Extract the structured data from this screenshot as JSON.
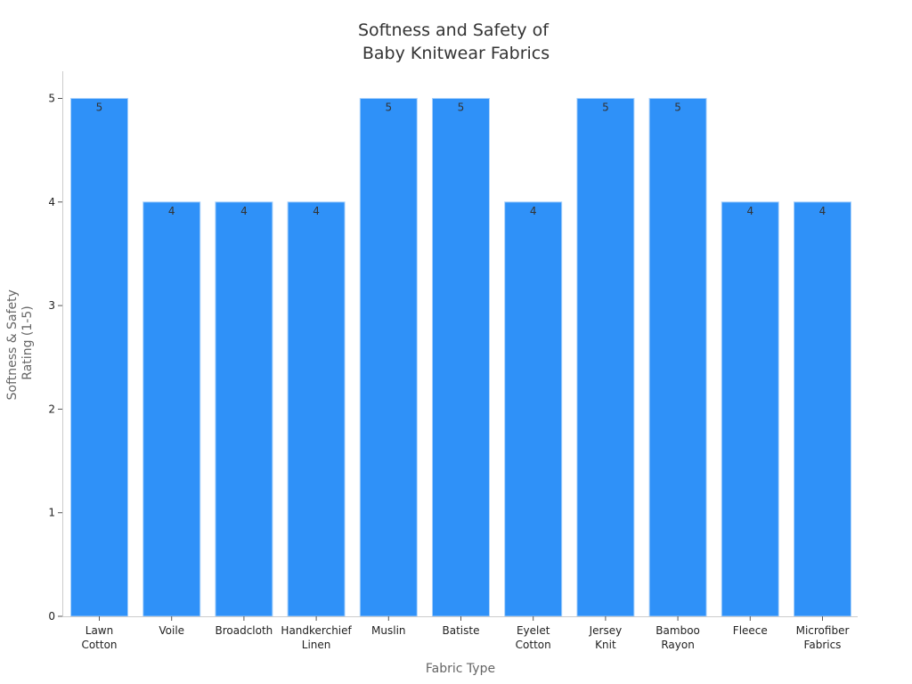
{
  "chart_data": {
    "type": "bar",
    "title": [
      "Softness and Safety of",
      "Baby Knitwear Fabrics"
    ],
    "xlabel": "Fabric Type",
    "ylabel": [
      "Softness & Safety",
      "Rating (1-5)"
    ],
    "categories": [
      [
        "Lawn",
        "Cotton"
      ],
      [
        "Voile"
      ],
      [
        "Broadcloth"
      ],
      [
        "Handkerchief",
        "Linen"
      ],
      [
        "Muslin"
      ],
      [
        "Batiste"
      ],
      [
        "Eyelet",
        "Cotton"
      ],
      [
        "Jersey",
        "Knit"
      ],
      [
        "Bamboo",
        "Rayon"
      ],
      [
        "Fleece"
      ],
      [
        "Microfiber",
        "Fabrics"
      ]
    ],
    "values": [
      5,
      4,
      4,
      4,
      5,
      5,
      4,
      5,
      5,
      4,
      4
    ],
    "ylim": [
      0,
      5
    ],
    "yticks": [
      0,
      1,
      2,
      3,
      4,
      5
    ],
    "grid": false,
    "bar_color": "#2f91f8",
    "bar_edge_color": "#a9d1fb"
  }
}
